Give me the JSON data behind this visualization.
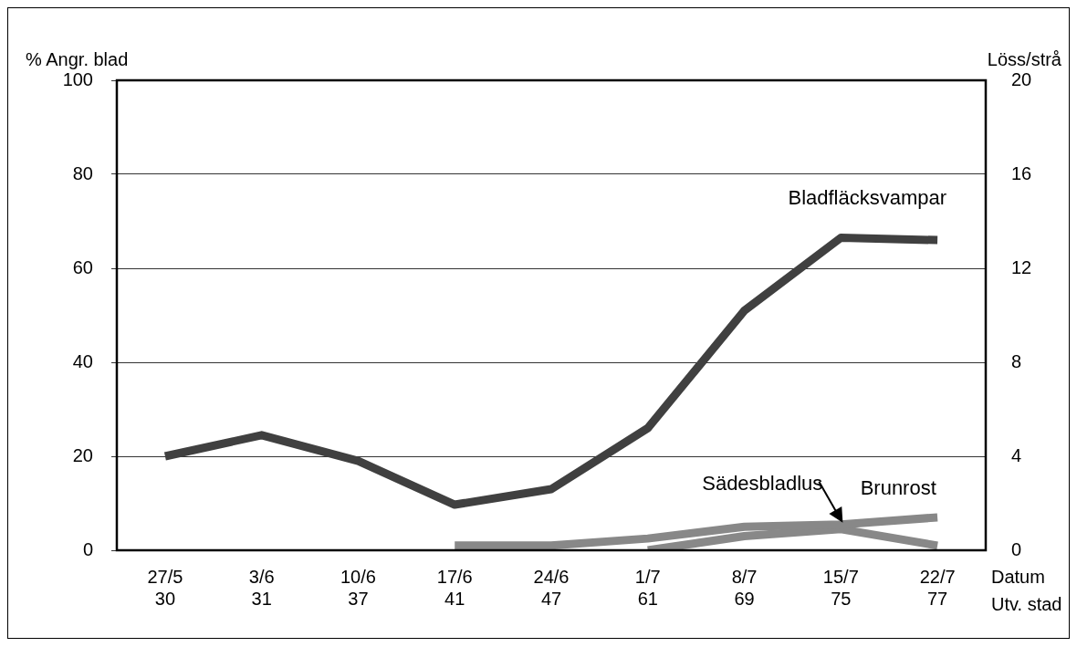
{
  "chart_data": {
    "type": "line",
    "xlabel": "Datum\nUtv. stad",
    "ylabel": "% Angr. blad",
    "y2label": "Löss/strå",
    "categories": [
      "27/5\n30",
      "3/6\n31",
      "10/6\n37",
      "17/6\n41",
      "24/6\n47",
      "1/7\n61",
      "8/7\n69",
      "15/7\n75",
      "22/7\n77"
    ],
    "series": [
      {
        "name": "Bladfläcksvampar",
        "color": "#404040",
        "values": [
          20,
          24.5,
          19,
          9.7,
          13,
          26,
          51,
          66.5,
          66
        ]
      },
      {
        "name": "Brunrost",
        "color": "#888888",
        "values": [
          null,
          null,
          null,
          1,
          1,
          2.5,
          5,
          5.5,
          7
        ]
      },
      {
        "name": "Sädesbladlus",
        "color": "#888888",
        "axis": "y2",
        "values": [
          null,
          null,
          null,
          null,
          null,
          0,
          0.6,
          0.9,
          0.2
        ]
      }
    ],
    "ylim": [
      0,
      100
    ],
    "yticks": [
      0,
      20,
      40,
      60,
      80,
      100
    ],
    "y2lim": [
      0,
      20
    ],
    "y2ticks": [
      0,
      4,
      8,
      12,
      16,
      20
    ],
    "grid": "y",
    "legend": false,
    "marker": "none",
    "line_style": "solid"
  }
}
